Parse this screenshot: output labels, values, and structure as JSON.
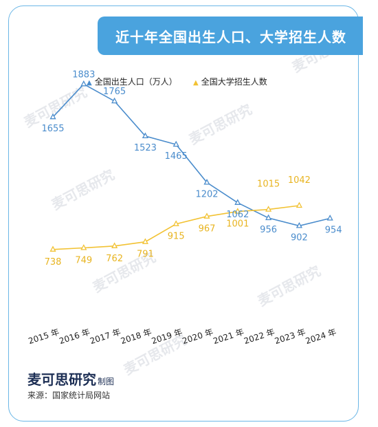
{
  "title": "近十年全国出生人口、大学招生人数",
  "brand": "麦可思研究",
  "brand_suffix": "制图",
  "source": "来源：国家统计局网站",
  "watermark": "麦可思研究",
  "colors": {
    "birth": "#4a8ccc",
    "enroll": "#f2c233",
    "banner": "#4aa3de",
    "border": "#6ab6e6"
  },
  "chart_data": {
    "type": "line",
    "categories": [
      "2015 年",
      "2016 年",
      "2017 年",
      "2018 年",
      "2019 年",
      "2020 年",
      "2021 年",
      "2022 年",
      "2023 年",
      "2024 年"
    ],
    "series": [
      {
        "name": "全国出生人口（万人）",
        "values": [
          1655,
          1883,
          1765,
          1523,
          1465,
          1202,
          1062,
          956,
          902,
          954
        ]
      },
      {
        "name": "全国大学招生人数",
        "values": [
          738,
          749,
          762,
          791,
          915,
          967,
          1001,
          1015,
          1042,
          null
        ]
      }
    ],
    "marker": "triangle",
    "grid": false,
    "legend": "top"
  }
}
